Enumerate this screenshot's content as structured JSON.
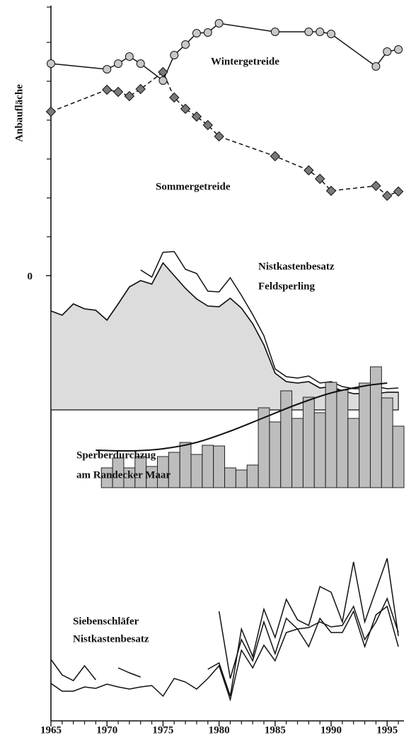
{
  "chart_data": {
    "type": "line",
    "y_label": "Anbaufläche",
    "xlim": [
      1965,
      1996.5
    ],
    "xticks": [
      1965,
      1970,
      1975,
      1980,
      1985,
      1990,
      1995
    ],
    "xminor_ticks": [
      1966,
      1967,
      1968,
      1969,
      1971,
      1972,
      1973,
      1974,
      1976,
      1977,
      1978,
      1979,
      1981,
      1982,
      1983,
      1984,
      1986,
      1987,
      1988,
      1989,
      1991,
      1992,
      1993,
      1994,
      1996
    ],
    "ylim": [
      -63,
      38
    ],
    "yticks": [
      0
    ],
    "yminor_ticks": [
      5.5,
      11,
      16.5,
      22,
      27.5,
      33,
      38
    ],
    "annotations": [
      "Wintergetreide",
      "Sommergetreide",
      "Nistkastenbesatz",
      "Feldsperling",
      "Sperberdurchzug",
      "am Randecker Maar",
      "Siebenschläfer",
      "Nistkastenbesatz"
    ],
    "series": [
      {
        "kind": "line",
        "marker": "circle",
        "color": "#c8c8c8",
        "dash": false,
        "x": [
          1965,
          1970,
          1971,
          1972,
          1973,
          1975,
          1976,
          1977,
          1978,
          1979,
          1980,
          1985,
          1988,
          1989,
          1990,
          1994,
          1995,
          1996
        ],
        "values": [
          30,
          29.2,
          30,
          31,
          30,
          27.6,
          31.2,
          32.7,
          34.3,
          34.4,
          35.7,
          34.5,
          34.5,
          34.5,
          34.2,
          29.6,
          31.7,
          32
        ]
      },
      {
        "kind": "line",
        "marker": "diamond",
        "color": "#7a7a7a",
        "dash": true,
        "x": [
          1965,
          1970,
          1971,
          1972,
          1973,
          1975,
          1976,
          1977,
          1978,
          1979,
          1980,
          1985,
          1988,
          1989,
          1990,
          1994,
          1995,
          1996
        ],
        "values": [
          23.2,
          26.3,
          26,
          25.4,
          26.4,
          28.8,
          25.2,
          23.6,
          22.5,
          21.3,
          19.7,
          16.9,
          14.9,
          13.7,
          12,
          12.7,
          11.3,
          11.9
        ]
      },
      {
        "kind": "area",
        "color": "#dcdcdc",
        "base": -19,
        "x": [
          1965,
          1966,
          1967,
          1968,
          1969,
          1970,
          1971,
          1972,
          1973,
          1974,
          1975,
          1976,
          1977,
          1978,
          1979,
          1980,
          1981,
          1982,
          1983,
          1984,
          1985,
          1986,
          1987,
          1988,
          1989,
          1990,
          1991,
          1992,
          1993,
          1994,
          1995,
          1996
        ],
        "values": [
          -5,
          -5.6,
          -4,
          -4.7,
          -4.9,
          -6.3,
          -4,
          -1.6,
          -0.7,
          -1.2,
          1.8,
          0,
          -1.8,
          -3.3,
          -4.3,
          -4.4,
          -3.2,
          -4.6,
          -6.8,
          -9.8,
          -13.8,
          -15,
          -15.2,
          -15,
          -15.9,
          -15.7,
          -16.3,
          -16.7,
          -16.7,
          -16.7,
          -16.5,
          -16.5
        ]
      },
      {
        "kind": "line",
        "dash": false,
        "x": [
          1973,
          1974,
          1975,
          1976,
          1977,
          1978,
          1979,
          1980,
          1981,
          1982,
          1983,
          1984,
          1985,
          1986,
          1987,
          1988,
          1989,
          1990,
          1991,
          1992,
          1993,
          1994,
          1995,
          1996
        ],
        "values": [
          0.8,
          -0.2,
          3.3,
          3.4,
          0.9,
          0.3,
          -2.2,
          -2.3,
          -0.3,
          -2.8,
          -5.5,
          -8.5,
          -13.2,
          -14.3,
          -14.5,
          -14.2,
          -15.2,
          -15,
          -15.7,
          -16,
          -16,
          -15.7,
          -16,
          -15.9
        ]
      },
      {
        "kind": "bar",
        "color": "#bdbdbd",
        "base": -30,
        "x": [
          1970,
          1971,
          1972,
          1973,
          1974,
          1975,
          1976,
          1977,
          1978,
          1979,
          1980,
          1981,
          1982,
          1983,
          1984,
          1985,
          1986,
          1987,
          1988,
          1989,
          1990,
          1991,
          1992,
          1993,
          1994,
          1995,
          1996
        ],
        "values": [
          -27.2,
          -25.8,
          -27.2,
          -25.6,
          -27,
          -25.6,
          -25,
          -23.6,
          -25.3,
          -24,
          -24.1,
          -27.2,
          -27.5,
          -26.8,
          -18.7,
          -20.7,
          -16.3,
          -20.2,
          -17.2,
          -19.4,
          -15.1,
          -16.2,
          -20.2,
          -15.2,
          -12.9,
          -17.3,
          -21.3
        ]
      },
      {
        "kind": "line",
        "smooth": true,
        "dash": false,
        "x": [
          1969,
          1972,
          1975,
          1978,
          1981,
          1984,
          1987,
          1990,
          1993,
          1995
        ],
        "values": [
          -24.7,
          -24.8,
          -24.5,
          -23.6,
          -22,
          -20.1,
          -18.2,
          -16.6,
          -15.6,
          -15.2
        ]
      },
      {
        "kind": "line",
        "dash": false,
        "x": [
          1965,
          1966,
          1967,
          1968,
          1969,
          1970,
          1971,
          1972,
          1973,
          1974,
          1975,
          1976,
          1977,
          1978,
          1979,
          1980,
          1981,
          1982,
          1983,
          1984,
          1985,
          1986,
          1987,
          1988,
          1989,
          1990,
          1991,
          1992,
          1993,
          1994,
          1995,
          1996
        ],
        "values": [
          -54.3,
          -56.5,
          -57.3,
          -55.2,
          -57.2,
          null,
          -55.5,
          -56.2,
          -56.8,
          null,
          null,
          null,
          null,
          null,
          -55.7,
          -54.8,
          -59.5,
          -50,
          -53.9,
          -47.2,
          -51.2,
          -45.8,
          -48.7,
          -49.5,
          -44,
          -44.8,
          -49,
          -40.5,
          -49,
          -44.5,
          -40,
          -51
        ]
      },
      {
        "kind": "line",
        "dash": false,
        "x": [
          1980,
          1981,
          1982,
          1983,
          1984,
          1985,
          1986,
          1987,
          1988,
          1989,
          1990,
          1991,
          1992,
          1993,
          1994,
          1995,
          1996
        ],
        "values": [
          -47.5,
          -57,
          -51.5,
          -54.5,
          -49,
          -53.5,
          -48.5,
          -50,
          -49.8,
          -49,
          -49.7,
          -49.5,
          -46.8,
          -51.5,
          -49,
          -45.7,
          -50.5
        ]
      },
      {
        "kind": "line",
        "dash": false,
        "x": [
          1965,
          1966,
          1967,
          1968,
          1969,
          1970,
          1971,
          1972,
          1973,
          1974,
          1975,
          1976,
          1977,
          1978,
          1979,
          1980,
          1981,
          1982,
          1983,
          1984,
          1985,
          1986,
          1987,
          1988,
          1989,
          1990,
          1991,
          1992,
          1993,
          1994,
          1995,
          1996
        ],
        "values": [
          -57.7,
          -58.8,
          -58.8,
          -58.2,
          -58.4,
          -57.8,
          -58.2,
          -58.5,
          -58.2,
          -58,
          -59.5,
          -57,
          -57.5,
          -58.5,
          -57,
          -55.2,
          -60,
          -53,
          -55.5,
          -52.3,
          -54.5,
          -50.5,
          -50,
          -52.5,
          -48.5,
          -50.5,
          -50.5,
          -47.5,
          -52.5,
          -48,
          -46.8,
          -52.5
        ]
      }
    ]
  }
}
